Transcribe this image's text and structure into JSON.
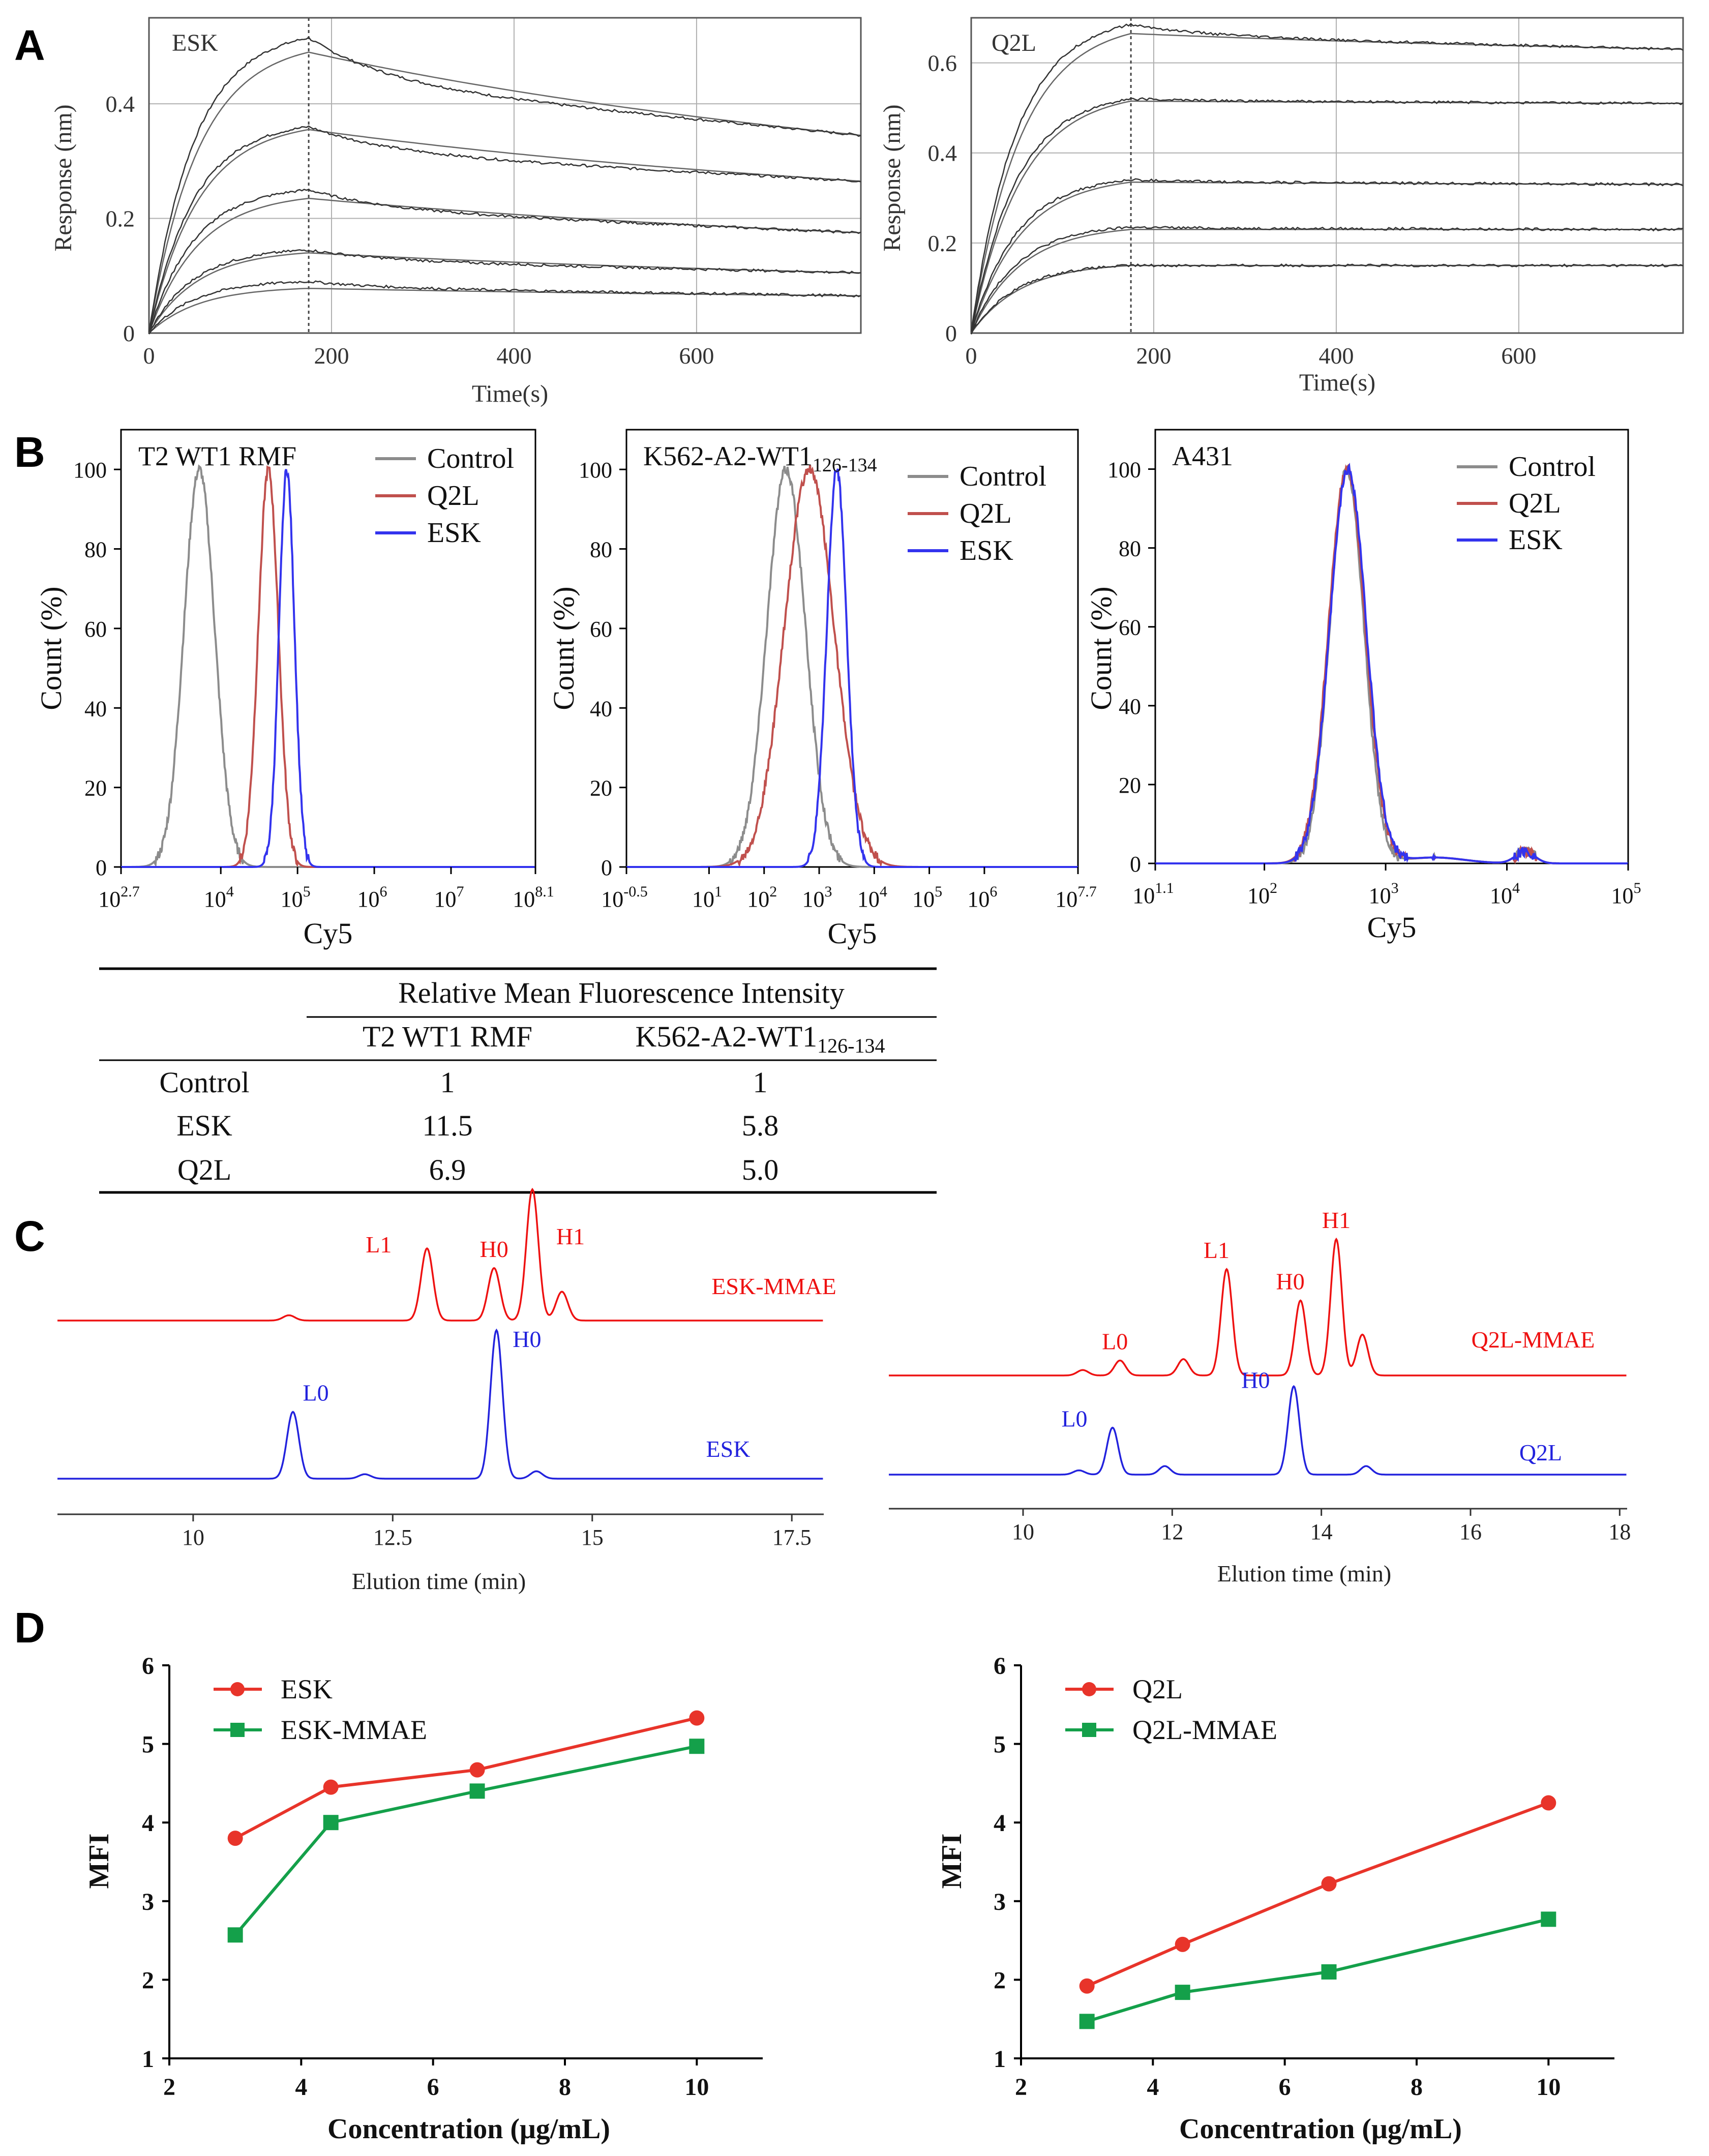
{
  "panels": {
    "a": "A",
    "b": "B",
    "c": "C",
    "d": "D"
  },
  "chart_data": [
    {
      "id": "a_esk",
      "type": "line",
      "title": "ESK",
      "xlabel": "Time(s)",
      "ylabel": "Response (nm)",
      "xlim": [
        0,
        780
      ],
      "ylim": [
        0,
        0.55
      ],
      "xticks": [
        0,
        200,
        400,
        600
      ],
      "yticks": [
        0,
        0.2,
        0.4
      ],
      "xtick_labels": [
        "0",
        "200",
        "400",
        "600"
      ],
      "ytick_labels": [
        "0",
        "0.2",
        "0.4"
      ],
      "assoc_end": 175,
      "curves": [
        {
          "peak": 0.515,
          "plateau": 0.49,
          "end": 0.345
        },
        {
          "peak": 0.36,
          "plateau": 0.355,
          "end": 0.265
        },
        {
          "peak": 0.25,
          "plateau": 0.235,
          "end": 0.175
        },
        {
          "peak": 0.145,
          "plateau": 0.14,
          "end": 0.105
        },
        {
          "peak": 0.09,
          "plateau": 0.078,
          "end": 0.065
        }
      ]
    },
    {
      "id": "a_q2l",
      "type": "line",
      "title": "Q2L",
      "xlabel": "Time(s)",
      "ylabel": "Response (nm)",
      "xlim": [
        0,
        780
      ],
      "ylim": [
        0,
        0.7
      ],
      "xticks": [
        0,
        200,
        400,
        600
      ],
      "yticks": [
        0,
        0.2,
        0.4,
        0.6
      ],
      "xtick_labels": [
        "0",
        "200",
        "400",
        "600"
      ],
      "ytick_labels": [
        "0",
        "0.2",
        "0.4",
        "0.6"
      ],
      "assoc_end": 175,
      "curves": [
        {
          "peak": 0.685,
          "plateau": 0.665,
          "end": 0.63
        },
        {
          "peak": 0.52,
          "plateau": 0.515,
          "end": 0.51
        },
        {
          "peak": 0.34,
          "plateau": 0.335,
          "end": 0.33
        },
        {
          "peak": 0.235,
          "plateau": 0.23,
          "end": 0.23
        },
        {
          "peak": 0.15,
          "plateau": 0.15,
          "end": 0.15
        }
      ]
    },
    {
      "id": "b_t2",
      "type": "histogram",
      "title": "T2 WT1 RMF",
      "xlabel": "Cy5",
      "ylabel": "Count (%)",
      "xlim_log": [
        2.7,
        8.1
      ],
      "ylim": [
        0,
        110
      ],
      "yticks": [
        0,
        20,
        40,
        60,
        80,
        100
      ],
      "ytick_labels": [
        "0",
        "20",
        "40",
        "60",
        "80",
        "100"
      ],
      "xticks": [
        {
          "e": 2.7,
          "label": "2.7"
        },
        {
          "e": 4,
          "label": "4"
        },
        {
          "e": 5,
          "label": "5"
        },
        {
          "e": 6,
          "label": "6"
        },
        {
          "e": 7,
          "label": "7"
        },
        {
          "e": 8.1,
          "label": "8.1"
        }
      ],
      "series": [
        {
          "name": "Control",
          "color": "#8c8c8c",
          "peak_log": 3.72,
          "sigma": 0.2
        },
        {
          "name": "Q2L",
          "color": "#c0504d",
          "peak_log": 4.62,
          "sigma": 0.13
        },
        {
          "name": "ESK",
          "color": "#3333ee",
          "peak_log": 4.86,
          "sigma": 0.1
        }
      ]
    },
    {
      "id": "b_k562",
      "type": "histogram",
      "title": "K562-A2-WT1",
      "title_sub": "126-134",
      "xlabel": "Cy5",
      "ylabel": "Count (%)",
      "xlim_log": [
        -0.5,
        7.7
      ],
      "ylim": [
        0,
        110
      ],
      "yticks": [
        0,
        20,
        40,
        60,
        80,
        100
      ],
      "ytick_labels": [
        "0",
        "20",
        "40",
        "60",
        "80",
        "100"
      ],
      "xticks": [
        {
          "e": -0.5,
          "label": "-0.5"
        },
        {
          "e": 1,
          "label": "1"
        },
        {
          "e": 2,
          "label": "2"
        },
        {
          "e": 3,
          "label": "3"
        },
        {
          "e": 4,
          "label": "4"
        },
        {
          "e": 5,
          "label": "5"
        },
        {
          "e": 6,
          "label": "6"
        },
        {
          "e": 7.7,
          "label": "7.7"
        }
      ],
      "series": [
        {
          "name": "Control",
          "color": "#8c8c8c",
          "peak_log": 2.4,
          "sigma": 0.35
        },
        {
          "name": "Q2L",
          "color": "#c0504d",
          "peak_log": 2.82,
          "sigma": 0.45
        },
        {
          "name": "ESK",
          "color": "#3333ee",
          "peak_log": 3.32,
          "sigma": 0.18
        }
      ]
    },
    {
      "id": "b_a431",
      "type": "histogram",
      "title": "A431",
      "xlabel": "Cy5",
      "ylabel": "Count (%)",
      "xlim_log": [
        1.1,
        5
      ],
      "ylim": [
        0,
        110
      ],
      "yticks": [
        0,
        20,
        40,
        60,
        80,
        100
      ],
      "ytick_labels": [
        "0",
        "20",
        "40",
        "60",
        "80",
        "100"
      ],
      "xticks": [
        {
          "e": 1.1,
          "label": "1.1"
        },
        {
          "e": 2,
          "label": "2"
        },
        {
          "e": 3,
          "label": "3"
        },
        {
          "e": 4,
          "label": "4"
        },
        {
          "e": 5,
          "label": "5"
        }
      ],
      "series": [
        {
          "name": "Control",
          "color": "#8c8c8c",
          "peak_log": 2.68,
          "sigma": 0.14
        },
        {
          "name": "Q2L",
          "color": "#c0504d",
          "peak_log": 2.68,
          "sigma": 0.15
        },
        {
          "name": "ESK",
          "color": "#3333ee",
          "peak_log": 2.69,
          "sigma": 0.15
        }
      ]
    },
    {
      "id": "c_esk",
      "type": "line",
      "xlabel": "Elution time (min)",
      "xlim": [
        8.3,
        17.9
      ],
      "xticks": [
        10,
        12.5,
        15,
        17.5
      ],
      "xtick_labels": [
        "10",
        "12.5",
        "15",
        "17.5"
      ],
      "traces": [
        {
          "name": "ESK-MMAE",
          "color": "#ee1111",
          "peaks": [
            {
              "t": 11.2,
              "h": 0.04,
              "label": ""
            },
            {
              "t": 12.93,
              "h": 0.55,
              "label": "L1"
            },
            {
              "t": 13.77,
              "h": 0.4,
              "label": "H0"
            },
            {
              "t": 14.25,
              "h": 1.0,
              "label": "H1"
            },
            {
              "t": 14.62,
              "h": 0.22,
              "label": ""
            }
          ]
        },
        {
          "name": "ESK",
          "color": "#2222dd",
          "peaks": [
            {
              "t": 11.25,
              "h": 0.45,
              "label": "L0"
            },
            {
              "t": 12.15,
              "h": 0.03,
              "label": ""
            },
            {
              "t": 13.8,
              "h": 1.0,
              "label": "H0"
            },
            {
              "t": 14.3,
              "h": 0.05,
              "label": ""
            }
          ]
        }
      ]
    },
    {
      "id": "c_q2l",
      "type": "line",
      "xlabel": "Elution time (min)",
      "xlim": [
        8.2,
        18.1
      ],
      "xticks": [
        10,
        12,
        14,
        16,
        18
      ],
      "xtick_labels": [
        "10",
        "12",
        "14",
        "16",
        "18"
      ],
      "traces": [
        {
          "name": "Q2L-MMAE",
          "color": "#ee1111",
          "peaks": [
            {
              "t": 10.8,
              "h": 0.04,
              "label": ""
            },
            {
              "t": 11.3,
              "h": 0.11,
              "label": "L0"
            },
            {
              "t": 12.15,
              "h": 0.12,
              "label": ""
            },
            {
              "t": 12.73,
              "h": 0.78,
              "label": "L1"
            },
            {
              "t": 13.72,
              "h": 0.55,
              "label": "H0"
            },
            {
              "t": 14.2,
              "h": 1.0,
              "label": "H1"
            },
            {
              "t": 14.55,
              "h": 0.3,
              "label": ""
            }
          ]
        },
        {
          "name": "Q2L",
          "color": "#2222dd",
          "peaks": [
            {
              "t": 10.75,
              "h": 0.03,
              "label": ""
            },
            {
              "t": 11.2,
              "h": 0.33,
              "label": "L0"
            },
            {
              "t": 11.9,
              "h": 0.06,
              "label": ""
            },
            {
              "t": 13.63,
              "h": 0.62,
              "label": "H0"
            },
            {
              "t": 14.6,
              "h": 0.06,
              "label": ""
            }
          ]
        }
      ]
    },
    {
      "id": "d_esk",
      "type": "line",
      "xlabel": "Concentration (μg/mL)",
      "ylabel": "MFI",
      "xlim": [
        2,
        11
      ],
      "ylim": [
        1,
        6
      ],
      "xticks": [
        2,
        4,
        6,
        8,
        10
      ],
      "yticks": [
        1,
        2,
        3,
        4,
        5,
        6
      ],
      "xtick_labels": [
        "2",
        "4",
        "6",
        "8",
        "10"
      ],
      "ytick_labels": [
        "1",
        "2",
        "3",
        "4",
        "5",
        "6"
      ],
      "x": [
        3,
        4.45,
        6.67,
        10
      ],
      "series": [
        {
          "name": "ESK",
          "color": "#e8342a",
          "marker": "circle",
          "values": [
            3.8,
            4.45,
            4.67,
            5.33
          ]
        },
        {
          "name": "ESK-MMAE",
          "color": "#14a04a",
          "marker": "square",
          "values": [
            2.57,
            4.0,
            4.4,
            4.97
          ]
        }
      ]
    },
    {
      "id": "d_q2l",
      "type": "line",
      "xlabel": "Concentration (μg/mL)",
      "ylabel": "MFI",
      "xlim": [
        2,
        11
      ],
      "ylim": [
        1,
        6
      ],
      "xticks": [
        2,
        4,
        6,
        8,
        10
      ],
      "yticks": [
        1,
        2,
        3,
        4,
        5,
        6
      ],
      "xtick_labels": [
        "2",
        "4",
        "6",
        "8",
        "10"
      ],
      "ytick_labels": [
        "1",
        "2",
        "3",
        "4",
        "5",
        "6"
      ],
      "x": [
        3,
        4.45,
        6.67,
        10
      ],
      "series": [
        {
          "name": "Q2L",
          "color": "#e8342a",
          "marker": "circle",
          "values": [
            1.92,
            2.45,
            3.22,
            4.25
          ]
        },
        {
          "name": "Q2L-MMAE",
          "color": "#14a04a",
          "marker": "square",
          "values": [
            1.47,
            1.84,
            2.1,
            2.77
          ]
        }
      ]
    }
  ],
  "mfi_table": {
    "header": "Relative Mean Fluorescence Intensity",
    "col1": "T2 WT1 RMF",
    "col2": "K562-A2-WT1",
    "col2_sub": "126-134",
    "rows": [
      {
        "label": "Control",
        "v1": "1",
        "v2": "1"
      },
      {
        "label": "ESK",
        "v1": "11.5",
        "v2": "5.8"
      },
      {
        "label": "Q2L",
        "v1": "6.9",
        "v2": "5.0"
      }
    ]
  }
}
